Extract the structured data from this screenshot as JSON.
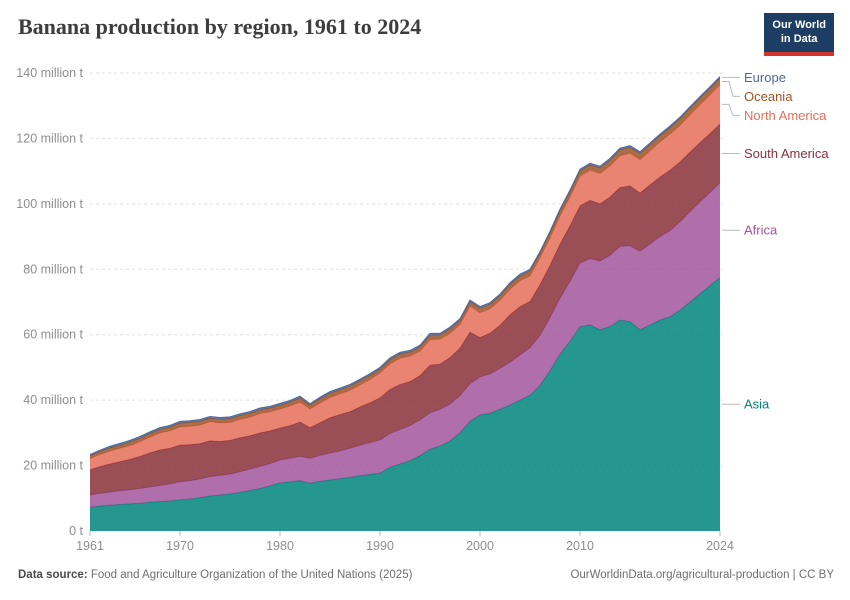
{
  "header": {
    "title": "Banana production by region, 1961 to 2024",
    "logo": {
      "line1": "Our World",
      "line2": "in Data"
    }
  },
  "footer": {
    "source_label": "Data source:",
    "source_text": " Food and Agriculture Organization of the United Nations (2025)",
    "credit": "OurWorldinData.org/agricultural-production | CC BY"
  },
  "chart_data": {
    "type": "area",
    "stacked": true,
    "title": "Banana production by region, 1961 to 2024",
    "unit": "million t",
    "ylim": [
      0,
      140
    ],
    "grid": "dashed-horizontal",
    "legend_position": "right-edge-labels",
    "connector_color": "#bbbbbb",
    "x": [
      1961,
      1962,
      1963,
      1964,
      1965,
      1966,
      1967,
      1968,
      1969,
      1970,
      1971,
      1972,
      1973,
      1974,
      1975,
      1976,
      1977,
      1978,
      1979,
      1980,
      1981,
      1982,
      1983,
      1984,
      1985,
      1986,
      1987,
      1988,
      1989,
      1990,
      1991,
      1992,
      1993,
      1994,
      1995,
      1996,
      1997,
      1998,
      1999,
      2000,
      2001,
      2002,
      2003,
      2004,
      2005,
      2006,
      2007,
      2008,
      2009,
      2010,
      2011,
      2012,
      2013,
      2014,
      2015,
      2016,
      2017,
      2018,
      2019,
      2020,
      2021,
      2022,
      2023,
      2024
    ],
    "x_ticks": [
      1961,
      1970,
      1980,
      1990,
      2000,
      2010,
      2024
    ],
    "y_ticks": [
      {
        "value": 0,
        "label": "0 t"
      },
      {
        "value": 20,
        "label": "20 million t"
      },
      {
        "value": 40,
        "label": "40 million t"
      },
      {
        "value": 60,
        "label": "60 million t"
      },
      {
        "value": 80,
        "label": "80 million t"
      },
      {
        "value": 100,
        "label": "100 million t"
      },
      {
        "value": 120,
        "label": "120 million t"
      },
      {
        "value": 140,
        "label": "140 million t"
      }
    ],
    "series": [
      {
        "name": "Asia",
        "color": "#00847E",
        "values": [
          7.3,
          7.6,
          7.9,
          8.1,
          8.3,
          8.5,
          8.8,
          9.0,
          9.2,
          9.5,
          9.8,
          10.2,
          10.7,
          11.0,
          11.3,
          11.8,
          12.4,
          13.0,
          13.8,
          14.7,
          15.0,
          15.4,
          14.6,
          15.2,
          15.6,
          16.0,
          16.4,
          16.9,
          17.3,
          17.7,
          19.5,
          20.5,
          21.5,
          23.0,
          25.0,
          26.0,
          27.5,
          30.0,
          33.5,
          35.5,
          36.0,
          37.2,
          38.5,
          40.0,
          41.5,
          44.5,
          49.0,
          54.0,
          58.0,
          62.4,
          63.0,
          61.5,
          62.5,
          64.5,
          64.0,
          61.5,
          63.0,
          64.5,
          65.5,
          67.5,
          70.0,
          72.5,
          75.0,
          77.5
        ]
      },
      {
        "name": "Africa",
        "color": "#A2559C",
        "values": [
          3.7,
          3.9,
          4.0,
          4.2,
          4.3,
          4.5,
          4.7,
          4.9,
          5.2,
          5.5,
          5.6,
          5.7,
          5.9,
          6.0,
          6.1,
          6.3,
          6.5,
          6.7,
          6.8,
          7.0,
          7.2,
          7.4,
          7.6,
          7.9,
          8.2,
          8.5,
          8.9,
          9.3,
          9.7,
          10.1,
          10.3,
          10.5,
          10.7,
          10.9,
          11.1,
          11.2,
          11.3,
          11.4,
          11.5,
          11.6,
          12.0,
          12.5,
          13.1,
          13.8,
          14.5,
          15.3,
          16.2,
          17.2,
          18.3,
          19.5,
          20.3,
          21.0,
          21.8,
          22.5,
          23.2,
          24.0,
          24.8,
          25.5,
          26.3,
          27.0,
          27.6,
          28.1,
          28.5,
          28.9
        ]
      },
      {
        "name": "South America",
        "color": "#883039",
        "values": [
          7.7,
          8.2,
          8.6,
          8.9,
          9.3,
          9.8,
          10.4,
          10.9,
          10.9,
          11.3,
          11.0,
          10.8,
          11.0,
          10.4,
          10.3,
          10.4,
          10.2,
          10.3,
          10.0,
          9.8,
          10.0,
          10.5,
          9.4,
          10.0,
          10.8,
          11.1,
          11.2,
          11.7,
          12.2,
          12.9,
          13.5,
          13.8,
          13.5,
          13.6,
          14.6,
          13.8,
          14.2,
          14.5,
          15.8,
          12.0,
          12.5,
          13.2,
          14.5,
          14.8,
          14.2,
          15.5,
          16.0,
          16.5,
          17.0,
          17.5,
          17.8,
          17.5,
          17.8,
          18.0,
          18.3,
          17.8,
          18.0,
          18.2,
          18.5,
          18.3,
          18.2,
          18.1,
          18.0,
          18.0
        ]
      },
      {
        "name": "North America",
        "color": "#E56E5A",
        "values": [
          3.4,
          3.7,
          3.9,
          4.1,
          4.2,
          4.5,
          4.8,
          5.2,
          5.3,
          5.5,
          5.6,
          5.7,
          5.8,
          5.6,
          5.5,
          5.6,
          5.7,
          5.9,
          5.8,
          5.8,
          6.0,
          6.1,
          5.7,
          6.0,
          6.2,
          6.3,
          6.5,
          6.7,
          7.1,
          7.6,
          7.8,
          8.0,
          7.7,
          7.5,
          7.8,
          7.6,
          7.4,
          7.2,
          7.9,
          7.6,
          7.4,
          7.6,
          7.8,
          7.9,
          7.8,
          8.2,
          8.4,
          8.6,
          8.8,
          9.0,
          9.2,
          9.3,
          9.5,
          9.7,
          10.0,
          10.2,
          10.4,
          10.7,
          11.0,
          11.2,
          11.4,
          11.6,
          11.8,
          12.0
        ]
      },
      {
        "name": "Oceania",
        "color": "#9C5427",
        "values": [
          0.9,
          0.9,
          1.0,
          1.0,
          1.1,
          1.1,
          1.1,
          1.1,
          1.2,
          1.2,
          1.2,
          1.2,
          1.1,
          1.2,
          1.2,
          1.2,
          1.2,
          1.2,
          1.2,
          1.2,
          1.2,
          1.3,
          1.2,
          1.3,
          1.3,
          1.3,
          1.3,
          1.3,
          1.3,
          1.2,
          1.3,
          1.3,
          1.3,
          1.3,
          1.4,
          1.3,
          1.4,
          1.3,
          1.4,
          1.4,
          1.4,
          1.4,
          1.5,
          1.5,
          1.5,
          1.4,
          1.5,
          1.6,
          1.6,
          1.7,
          1.6,
          1.7,
          1.8,
          1.8,
          1.8,
          1.9,
          1.9,
          1.9,
          2.0,
          2.0,
          2.0,
          2.0,
          2.0,
          2.0
        ]
      },
      {
        "name": "Europe",
        "color": "#4C6A9C",
        "values": [
          0.4,
          0.4,
          0.5,
          0.5,
          0.5,
          0.5,
          0.5,
          0.5,
          0.5,
          0.5,
          0.5,
          0.5,
          0.5,
          0.5,
          0.5,
          0.5,
          0.5,
          0.5,
          0.5,
          0.5,
          0.5,
          0.5,
          0.4,
          0.5,
          0.5,
          0.5,
          0.5,
          0.5,
          0.5,
          0.5,
          0.5,
          0.5,
          0.5,
          0.5,
          0.5,
          0.5,
          0.5,
          0.5,
          0.5,
          0.5,
          0.5,
          0.5,
          0.5,
          0.5,
          0.5,
          0.5,
          0.5,
          0.5,
          0.5,
          0.5,
          0.5,
          0.5,
          0.5,
          0.5,
          0.5,
          0.5,
          0.5,
          0.5,
          0.5,
          0.5,
          0.5,
          0.5,
          0.5,
          0.5
        ]
      }
    ]
  }
}
